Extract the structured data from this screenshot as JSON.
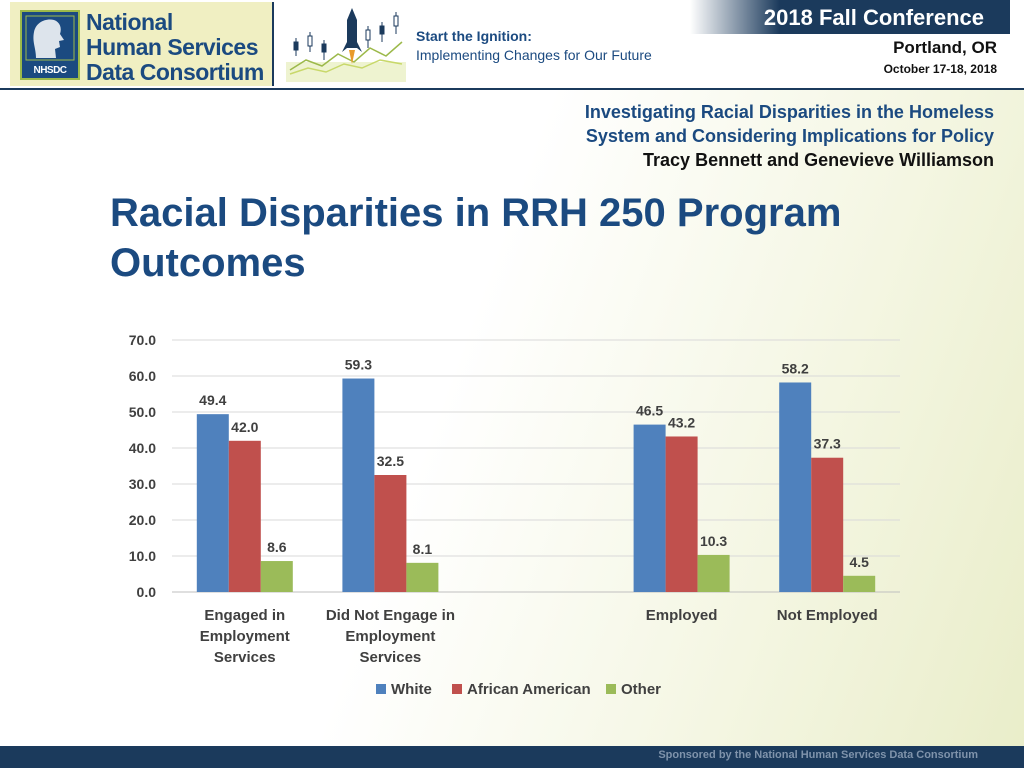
{
  "header": {
    "org_lines": [
      "National",
      "Human Services",
      "Data Consortium"
    ],
    "logo_abbrev": "NHSDC",
    "tagline_1": "Start the Ignition:",
    "tagline_2": "Implementing Changes for Our Future",
    "conference": "2018 Fall Conference",
    "location": "Portland, OR",
    "dates": "October 17-18, 2018"
  },
  "subtitle": {
    "line1": "Investigating Racial Disparities in the Homeless",
    "line2": "System and Considering Implications for Policy",
    "authors": "Tracy Bennett and Genevieve Williamson"
  },
  "slide": {
    "title_line1": "Racial Disparities in RRH 250 Program",
    "title_line2": "Outcomes"
  },
  "footer": {
    "sponsor": "Sponsored by the National Human Services Data Consortium"
  },
  "colors": {
    "brand_navy": "#1b3a5c",
    "title_blue": "#1b4a80",
    "white_series": "#4f81bd",
    "african_american_series": "#c0504d",
    "other_series": "#9bbb59"
  },
  "chart_data": {
    "type": "bar",
    "categories": [
      [
        "Engaged in",
        "Employment",
        "Services"
      ],
      [
        "Did Not Engage in",
        "Employment",
        "Services"
      ],
      [],
      [
        "Employed"
      ],
      [
        "Not Employed"
      ]
    ],
    "series": [
      {
        "name": "White",
        "color": "#4f81bd",
        "values": [
          49.4,
          59.3,
          null,
          46.5,
          58.2
        ]
      },
      {
        "name": "African American",
        "color": "#c0504d",
        "values": [
          42.0,
          32.5,
          null,
          43.2,
          37.3
        ]
      },
      {
        "name": "Other",
        "color": "#9bbb59",
        "values": [
          8.6,
          8.1,
          null,
          10.3,
          4.5
        ]
      }
    ],
    "ylim": [
      0,
      70
    ],
    "yticks": [
      0,
      10,
      20,
      30,
      40,
      50,
      60,
      70
    ],
    "grid": true,
    "legend_position": "bottom",
    "data_labels": true
  }
}
